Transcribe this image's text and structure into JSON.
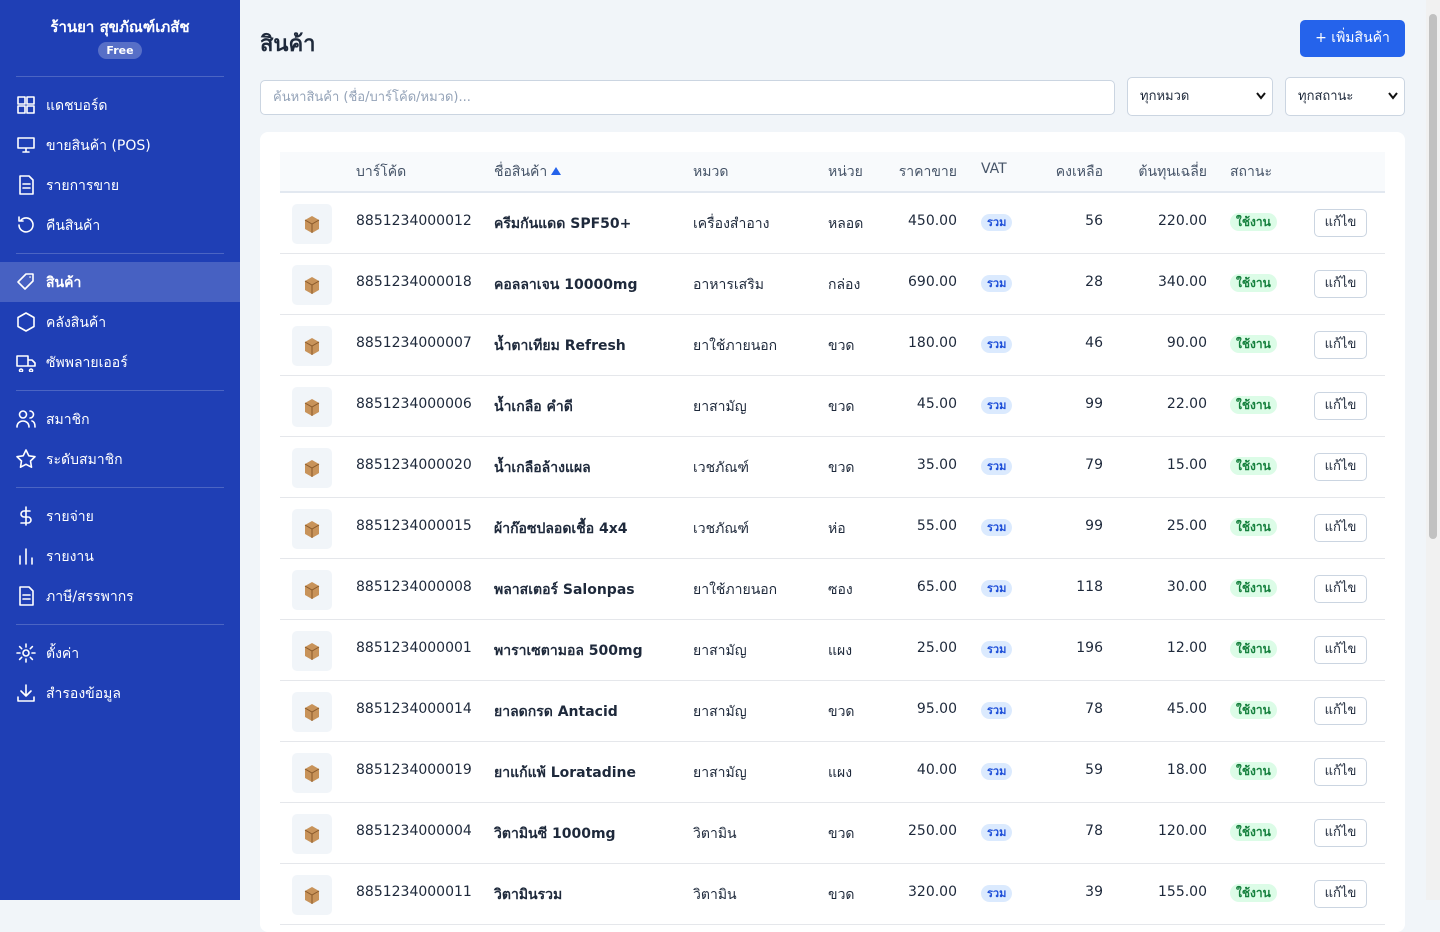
{
  "sidebar": {
    "store_name": "ร้านยา สุขภัณฑ์เภสัช",
    "plan": "Free",
    "groups": [
      [
        {
          "label": "แดชบอร์ด"
        },
        {
          "label": "ขายสินค้า (POS)"
        },
        {
          "label": "รายการขาย"
        },
        {
          "label": "คืนสินค้า"
        }
      ],
      [
        {
          "label": "สินค้า",
          "active": true
        },
        {
          "label": "คลังสินค้า"
        },
        {
          "label": "ซัพพลายเออร์"
        }
      ],
      [
        {
          "label": "สมาชิก"
        },
        {
          "label": "ระดับสมาชิก"
        }
      ],
      [
        {
          "label": "รายจ่าย"
        },
        {
          "label": "รายงาน"
        },
        {
          "label": "ภาษี/สรรพากร"
        }
      ],
      [
        {
          "label": "ตั้งค่า"
        },
        {
          "label": "สำรองข้อมูล"
        }
      ]
    ]
  },
  "header": {
    "title": "สินค้า",
    "add_button": "+ เพิ่มสินค้า"
  },
  "filters": {
    "search_placeholder": "ค้นหาสินค้า (ชื่อ/บาร์โค้ด/หมวด)...",
    "category": "ทุกหมวด",
    "status": "ทุกสถานะ"
  },
  "table": {
    "columns": [
      "บาร์โค้ด",
      "ชื่อสินค้า",
      "หมวด",
      "หน่วย",
      "ราคาขาย",
      "VAT",
      "คงเหลือ",
      "ต้นทุนเฉลี่ย",
      "สถานะ"
    ],
    "rows": [
      [
        "8851234000012",
        "ครีมกันแดด SPF50+",
        "เครื่องสำอาง",
        "หลอด",
        "450.00",
        "รวม",
        56,
        "220.00",
        "ใช้งาน",
        "แก้ไข"
      ],
      [
        "8851234000018",
        "คอลลาเจน 10000mg",
        "อาหารเสริม",
        "กล่อง",
        "690.00",
        "รวม",
        28,
        "340.00",
        "ใช้งาน",
        "แก้ไข"
      ],
      [
        "8851234000007",
        "น้ำตาเทียม Refresh",
        "ยาใช้ภายนอก",
        "ขวด",
        "180.00",
        "รวม",
        46,
        "90.00",
        "ใช้งาน",
        "แก้ไข"
      ],
      [
        "8851234000006",
        "น้ำเกลือ คำดี",
        "ยาสามัญ",
        "ขวด",
        "45.00",
        "รวม",
        99,
        "22.00",
        "ใช้งาน",
        "แก้ไข"
      ],
      [
        "8851234000020",
        "น้ำเกลือล้างแผล",
        "เวชภัณฑ์",
        "ขวด",
        "35.00",
        "รวม",
        79,
        "15.00",
        "ใช้งาน",
        "แก้ไข"
      ],
      [
        "8851234000015",
        "ผ้าก๊อซปลอดเชื้อ 4x4",
        "เวชภัณฑ์",
        "ห่อ",
        "55.00",
        "รวม",
        99,
        "25.00",
        "ใช้งาน",
        "แก้ไข"
      ],
      [
        "8851234000008",
        "พลาสเตอร์ Salonpas",
        "ยาใช้ภายนอก",
        "ซอง",
        "65.00",
        "รวม",
        118,
        "30.00",
        "ใช้งาน",
        "แก้ไข"
      ],
      [
        "8851234000001",
        "พาราเซตามอล 500mg",
        "ยาสามัญ",
        "แผง",
        "25.00",
        "รวม",
        196,
        "12.00",
        "ใช้งาน",
        "แก้ไข"
      ],
      [
        "8851234000014",
        "ยาลดกรด Antacid",
        "ยาสามัญ",
        "ขวด",
        "95.00",
        "รวม",
        78,
        "45.00",
        "ใช้งาน",
        "แก้ไข"
      ],
      [
        "8851234000019",
        "ยาแก้แพ้ Loratadine",
        "ยาสามัญ",
        "แผง",
        "40.00",
        "รวม",
        59,
        "18.00",
        "ใช้งาน",
        "แก้ไข"
      ],
      [
        "8851234000004",
        "วิตามินซี 1000mg",
        "วิตามิน",
        "ขวด",
        "250.00",
        "รวม",
        78,
        "120.00",
        "ใช้งาน",
        "แก้ไข"
      ],
      [
        "8851234000011",
        "วิตามินรวม",
        "วิตามิน",
        "ขวด",
        "320.00",
        "รวม",
        39,
        "155.00",
        "ใช้งาน",
        "แก้ไข"
      ]
    ]
  }
}
